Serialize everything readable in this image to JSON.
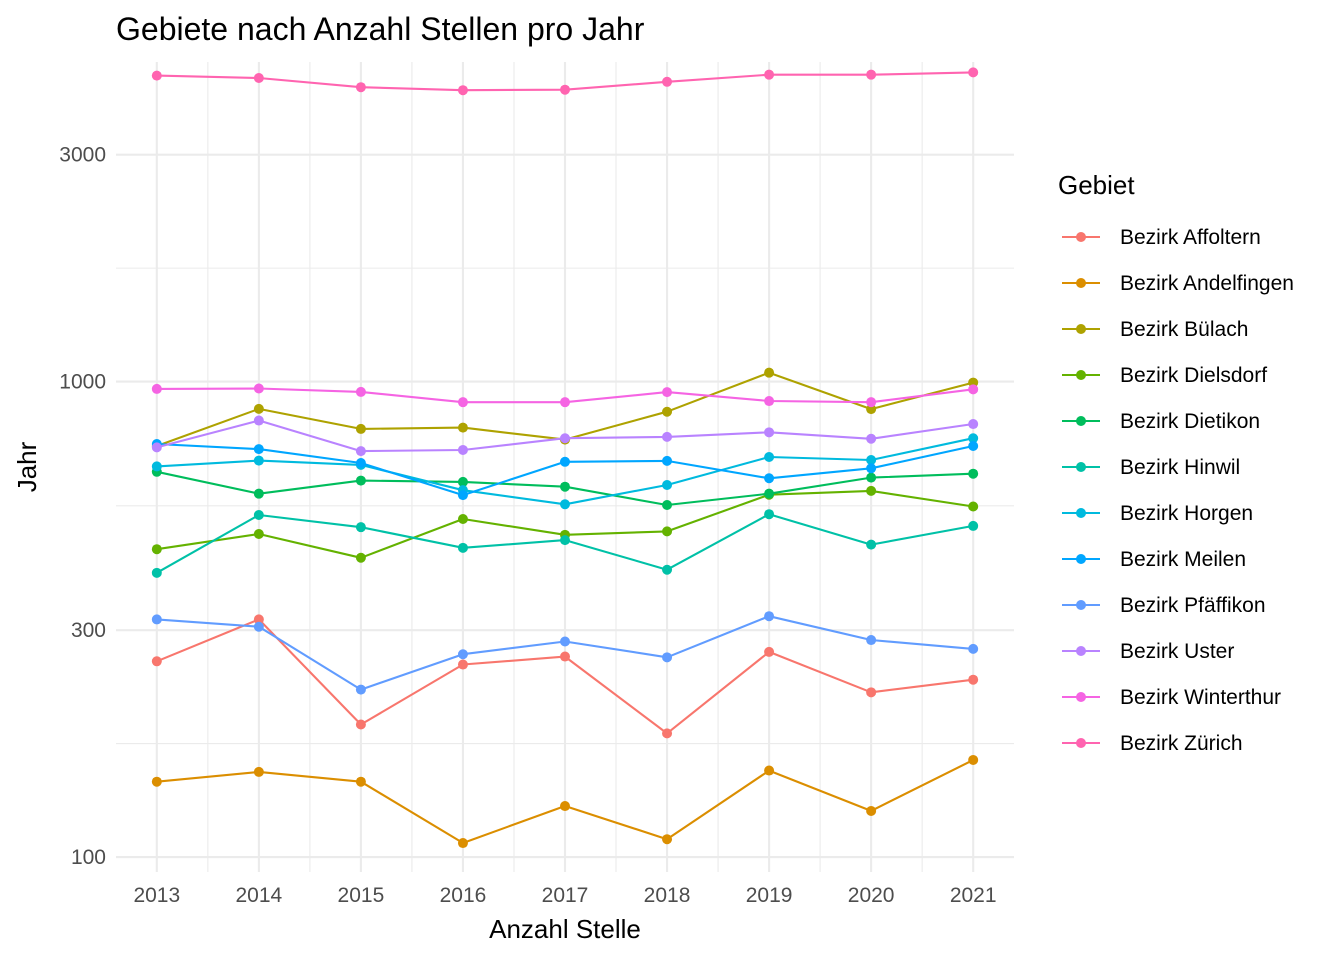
{
  "chart_data": {
    "type": "line",
    "title": "Gebiete nach Anzahl Stellen pro Jahr",
    "xlabel": "Anzahl Stelle",
    "ylabel": "Jahr",
    "y_scale": "log10",
    "ylim": [
      93,
      4700
    ],
    "y_ticks": [
      100,
      300,
      1000,
      3000
    ],
    "x": [
      2013,
      2014,
      2015,
      2016,
      2017,
      2018,
      2019,
      2020,
      2021
    ],
    "grid": true,
    "legend_title": "Gebiet",
    "legend_position": "right",
    "series": [
      {
        "name": "Bezirk Affoltern",
        "color": "#F8766D",
        "values": [
          258,
          316,
          190,
          254,
          264,
          182,
          270,
          222,
          236
        ]
      },
      {
        "name": "Bezirk Andelfingen",
        "color": "#DB8E00",
        "values": [
          144,
          151,
          144,
          107,
          128,
          109,
          152,
          125,
          160
        ]
      },
      {
        "name": "Bezirk Bülach",
        "color": "#AEA200",
        "values": [
          732,
          876,
          795,
          800,
          755,
          864,
          1044,
          875,
          995
        ]
      },
      {
        "name": "Bezirk Dielsdorf",
        "color": "#64B200",
        "values": [
          444,
          478,
          426,
          514,
          476,
          484,
          578,
          589,
          546
        ]
      },
      {
        "name": "Bezirk Dietikon",
        "color": "#00BD5C",
        "values": [
          646,
          581,
          619,
          615,
          601,
          550,
          581,
          628,
          640
        ]
      },
      {
        "name": "Bezirk Hinwil",
        "color": "#00C1A7",
        "values": [
          396,
          524,
          494,
          447,
          464,
          402,
          526,
          454,
          497
        ]
      },
      {
        "name": "Bezirk Horgen",
        "color": "#00BADE",
        "values": [
          663,
          682,
          668,
          591,
          552,
          606,
          694,
          684,
          760
        ]
      },
      {
        "name": "Bezirk Meilen",
        "color": "#00A6FF",
        "values": [
          739,
          721,
          674,
          577,
          678,
          681,
          626,
          657,
          732
        ]
      },
      {
        "name": "Bezirk Pfäffikon",
        "color": "#619CFF",
        "values": [
          316,
          305,
          225,
          267,
          284,
          263,
          321,
          286,
          274
        ]
      },
      {
        "name": "Bezirk Uster",
        "color": "#B983FF",
        "values": [
          727,
          828,
          714,
          718,
          760,
          765,
          782,
          758,
          814
        ]
      },
      {
        "name": "Bezirk Winterthur",
        "color": "#F564E3",
        "values": [
          965,
          967,
          951,
          905,
          905,
          950,
          910,
          905,
          963
        ]
      },
      {
        "name": "Bezirk Zürich",
        "color": "#FF64B0",
        "values": [
          4400,
          4350,
          4160,
          4100,
          4110,
          4270,
          4420,
          4420,
          4470
        ]
      }
    ]
  }
}
